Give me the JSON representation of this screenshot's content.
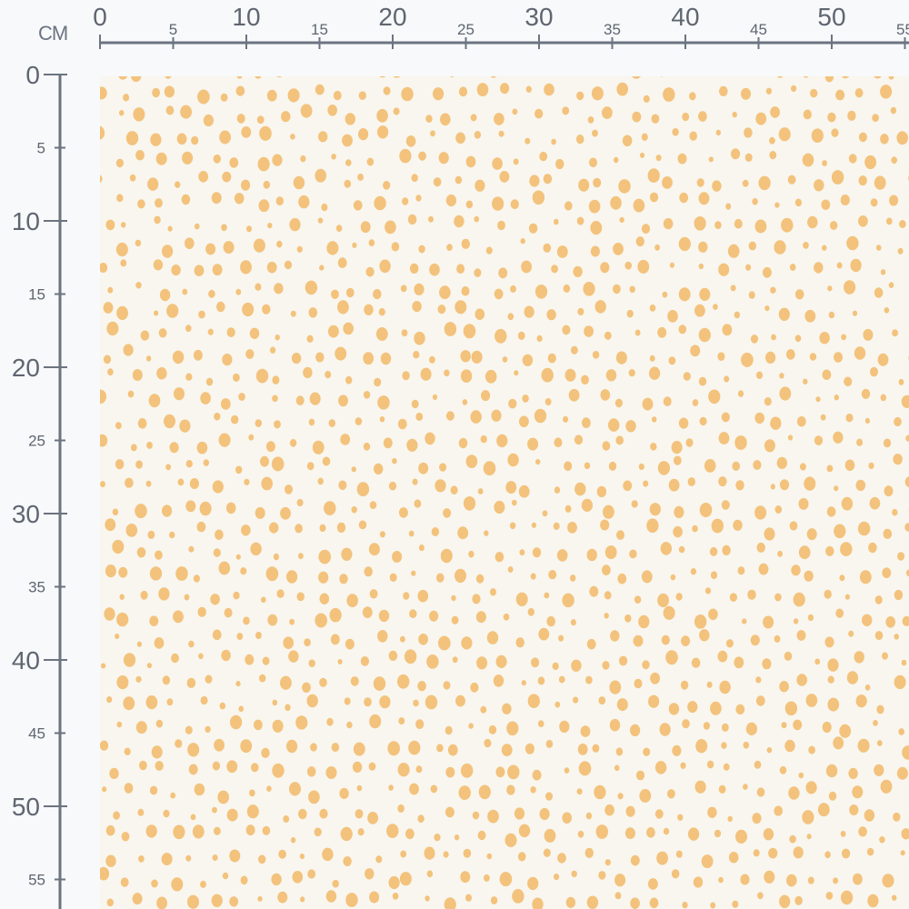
{
  "unit_label": "CM",
  "ruler": {
    "horizontal_labels": [
      "0",
      "5",
      "10",
      "15",
      "20",
      "25",
      "30",
      "35",
      "40",
      "45",
      "50",
      "55"
    ],
    "vertical_labels": [
      "0",
      "5",
      "10",
      "15",
      "20",
      "25",
      "30",
      "35",
      "40",
      "45",
      "50",
      "55"
    ],
    "color": "#6b7480"
  },
  "fabric": {
    "pattern": "irregular polka dots",
    "background_color": "#f8f6ee",
    "dot_color": "#f3c27c"
  }
}
